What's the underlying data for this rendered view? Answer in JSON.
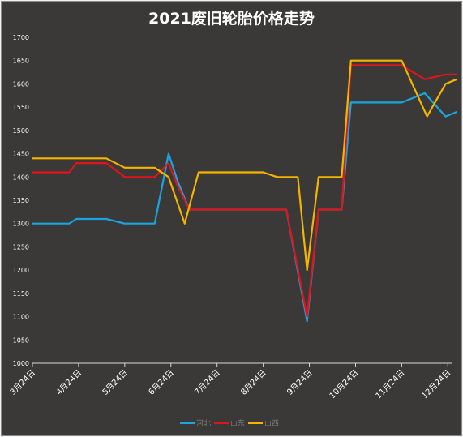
{
  "chart_data": {
    "type": "line",
    "title": "2021废旧轮胎价格走势",
    "xlabel": "",
    "ylabel": "",
    "ylim": [
      1000,
      1700
    ],
    "yticks": [
      1000,
      1050,
      1100,
      1150,
      1200,
      1250,
      1300,
      1350,
      1400,
      1450,
      1500,
      1550,
      1600,
      1650,
      1700
    ],
    "x_tick_labels": [
      "3月24日",
      "4月24日",
      "5月24日",
      "6月24日",
      "7月24日",
      "8月24日",
      "9月24日",
      "10月24日",
      "11月24日",
      "12月24日"
    ],
    "x_tick_positions": [
      0,
      1,
      2,
      3,
      4,
      5,
      6,
      7,
      8,
      9
    ],
    "xlim": [
      0,
      9.1
    ],
    "grid": false,
    "legend_position": "bottom",
    "series": [
      {
        "name": "河北",
        "color": "#1ba5e0",
        "points": [
          [
            0,
            1300
          ],
          [
            0.8,
            1300
          ],
          [
            0.95,
            1310
          ],
          [
            1.6,
            1310
          ],
          [
            2.0,
            1300
          ],
          [
            2.65,
            1300
          ],
          [
            2.95,
            1450
          ],
          [
            3.15,
            1390
          ],
          [
            3.4,
            1330
          ],
          [
            5.5,
            1330
          ],
          [
            5.95,
            1090
          ],
          [
            6.2,
            1330
          ],
          [
            6.7,
            1330
          ],
          [
            6.9,
            1560
          ],
          [
            8.0,
            1560
          ],
          [
            8.5,
            1580
          ],
          [
            8.95,
            1530
          ],
          [
            9.2,
            1540
          ]
        ]
      },
      {
        "name": "山东",
        "color": "#e0141b",
        "points": [
          [
            0,
            1410
          ],
          [
            0.8,
            1410
          ],
          [
            0.95,
            1430
          ],
          [
            1.6,
            1430
          ],
          [
            2.0,
            1400
          ],
          [
            2.65,
            1400
          ],
          [
            2.95,
            1430
          ],
          [
            3.15,
            1380
          ],
          [
            3.4,
            1330
          ],
          [
            5.5,
            1330
          ],
          [
            5.95,
            1100
          ],
          [
            6.2,
            1330
          ],
          [
            6.7,
            1330
          ],
          [
            6.9,
            1640
          ],
          [
            8.0,
            1640
          ],
          [
            8.5,
            1610
          ],
          [
            8.95,
            1620
          ],
          [
            9.2,
            1620
          ]
        ]
      },
      {
        "name": "山西",
        "color": "#f5b400",
        "points": [
          [
            0,
            1440
          ],
          [
            1.6,
            1440
          ],
          [
            2.0,
            1420
          ],
          [
            2.65,
            1420
          ],
          [
            2.95,
            1400
          ],
          [
            3.3,
            1300
          ],
          [
            3.6,
            1410
          ],
          [
            5.0,
            1410
          ],
          [
            5.3,
            1400
          ],
          [
            5.75,
            1400
          ],
          [
            5.95,
            1200
          ],
          [
            6.2,
            1400
          ],
          [
            6.7,
            1400
          ],
          [
            6.9,
            1650
          ],
          [
            8.0,
            1650
          ],
          [
            8.55,
            1530
          ],
          [
            8.95,
            1600
          ],
          [
            9.2,
            1610
          ]
        ]
      }
    ]
  }
}
